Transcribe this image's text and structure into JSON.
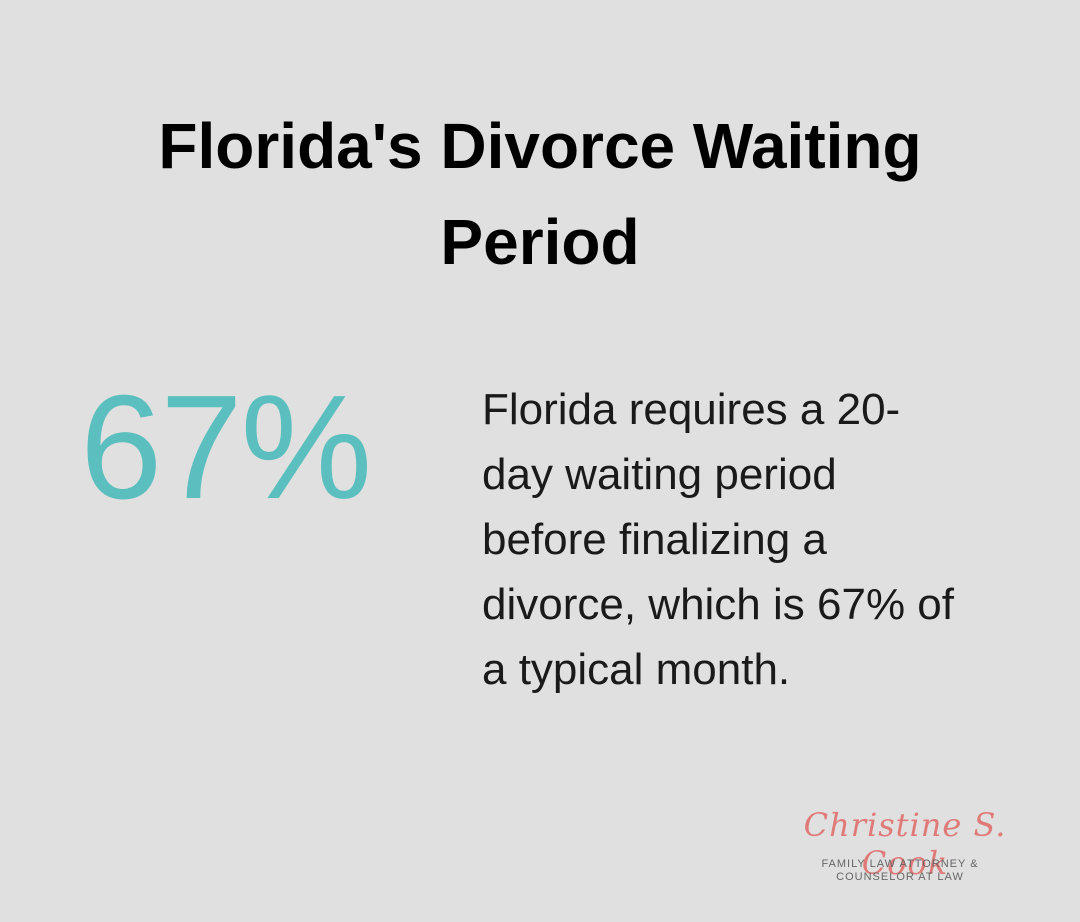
{
  "title": {
    "lines": [
      "Florida's Divorce Waiting",
      "Period"
    ]
  },
  "stat": {
    "value": "67%",
    "color": "#5bbfbf"
  },
  "description": {
    "lines": [
      "Florida requires a 20-",
      "day waiting period",
      "before finalizing a",
      "divorce, which is 67% of",
      "a typical month."
    ]
  },
  "logo": {
    "name": "Christine S. Cook",
    "tagline": [
      "FAMILY LAW ATTORNEY &",
      "COUNSELOR AT LAW"
    ]
  }
}
